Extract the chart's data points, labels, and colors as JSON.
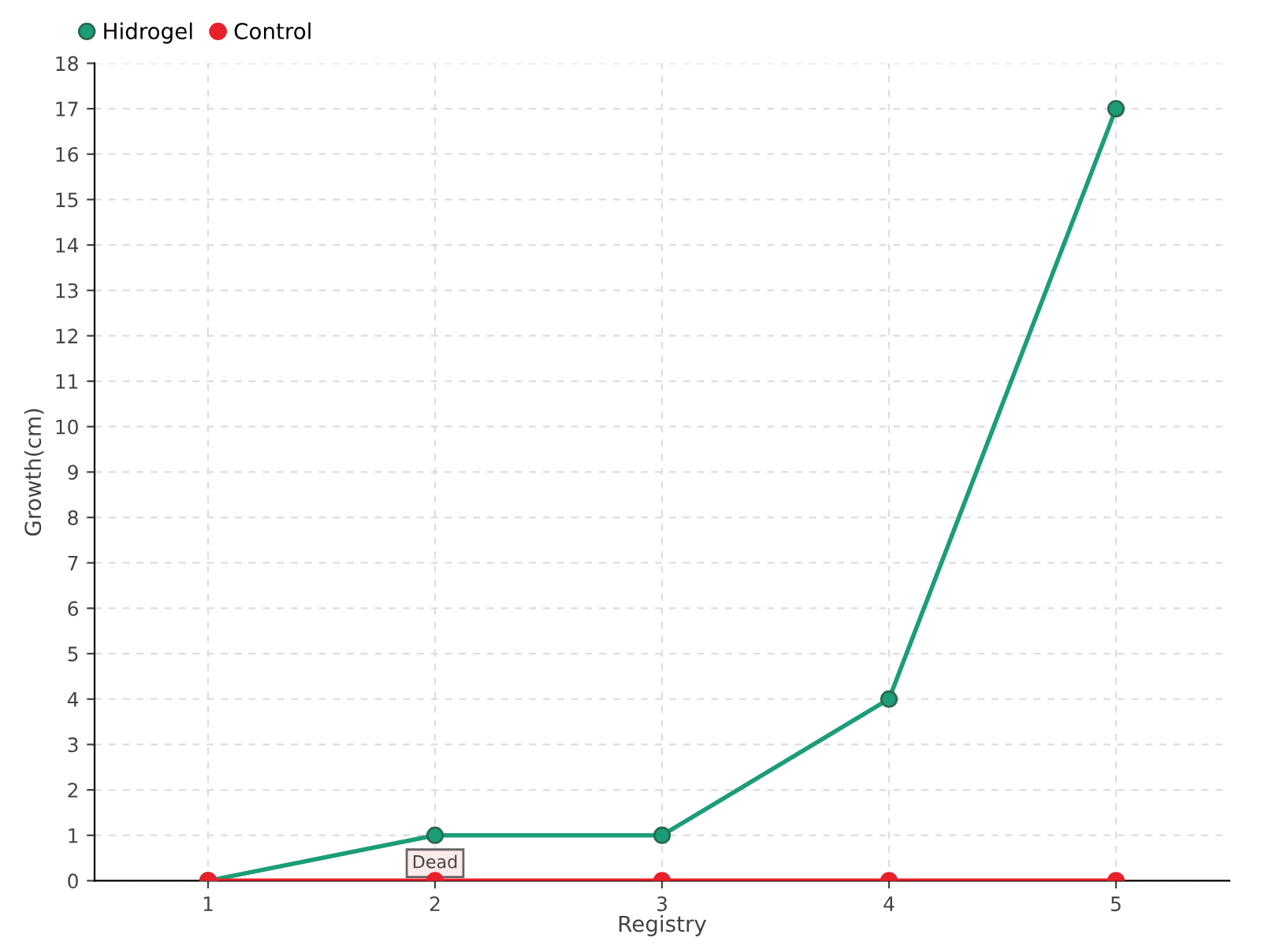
{
  "chart_data": {
    "type": "line",
    "xlabel": "Registry",
    "ylabel": "Growth(cm)",
    "categories": [
      "1",
      "2",
      "3",
      "4",
      "5"
    ],
    "series": [
      {
        "name": "Hidrogel",
        "color": "#1b9e77",
        "values": [
          0,
          1,
          1,
          4,
          17
        ]
      },
      {
        "name": "Control",
        "color": "#e8202a",
        "values": [
          0,
          0,
          0,
          0,
          0
        ]
      }
    ],
    "ylim": [
      0,
      18
    ],
    "yticks": [
      0,
      1,
      2,
      3,
      4,
      5,
      6,
      7,
      8,
      9,
      10,
      11,
      12,
      13,
      14,
      15,
      16,
      17,
      18
    ],
    "grid": true,
    "legend": "top left",
    "marker": "circle",
    "line_style": "solid",
    "annotations": [
      {
        "text": "Dead",
        "x": "2",
        "y": 0
      }
    ]
  }
}
